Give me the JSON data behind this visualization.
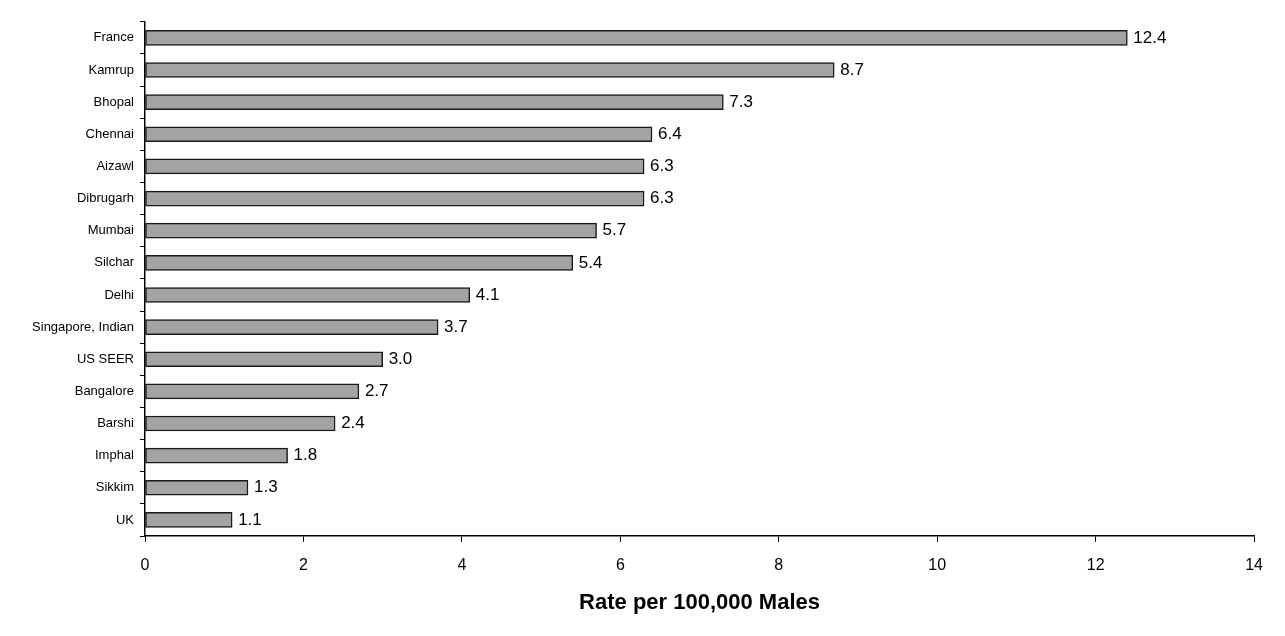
{
  "chart_data": {
    "type": "bar",
    "orientation": "horizontal",
    "xlabel": "Rate per 100,000 Males",
    "categories": [
      "France",
      "Kamrup",
      "Bhopal",
      "Chennai",
      "Aizawl",
      "Dibrugarh",
      "Mumbai",
      "Silchar",
      "Delhi",
      "Singapore, Indian",
      "US SEER",
      "Bangalore",
      "Barshi",
      "Imphal",
      "Sikkim",
      "UK"
    ],
    "values": [
      12.4,
      8.7,
      7.3,
      6.4,
      6.3,
      6.3,
      5.7,
      5.4,
      4.1,
      3.7,
      3.0,
      2.7,
      2.4,
      1.8,
      1.3,
      1.1
    ],
    "value_labels": [
      "12.4",
      "8.7",
      "7.3",
      "6.4",
      "6.3",
      "6.3",
      "5.7",
      "5.4",
      "4.1",
      "3.7",
      "3.0",
      "2.7",
      "2.4",
      "1.8",
      "1.3",
      "1.1"
    ],
    "color": "#a3a3a3",
    "xlim": [
      0,
      14
    ],
    "xticks": [
      0,
      2,
      4,
      6,
      8,
      10,
      12,
      14
    ],
    "grid": false
  }
}
